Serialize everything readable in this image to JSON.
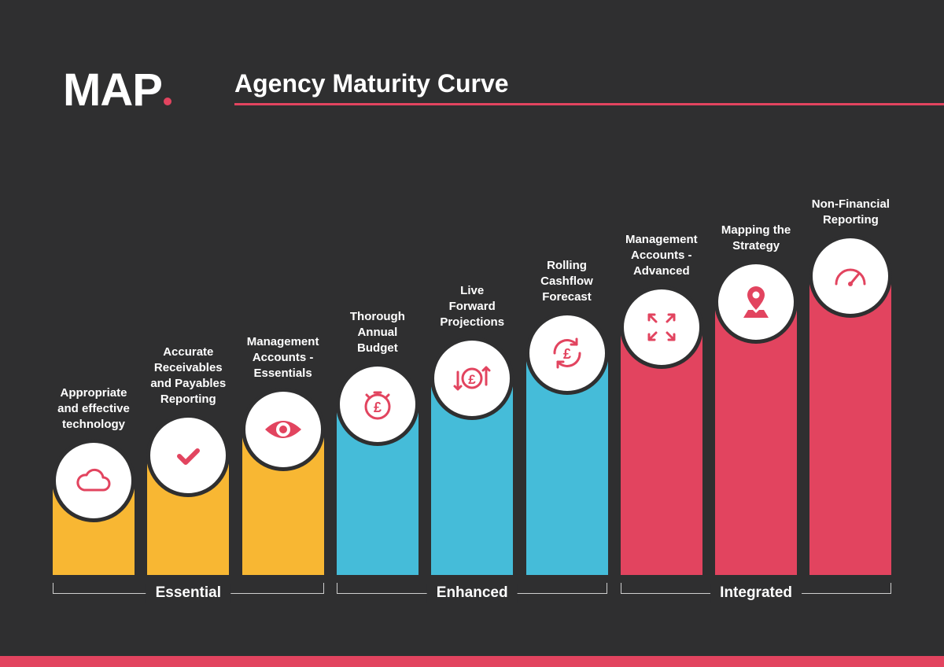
{
  "logo": {
    "text": "MAP"
  },
  "title": "Agency Maturity Curve",
  "colors": {
    "background": "#2f2f30",
    "accent": "#e2445f",
    "essential": "#f8b733",
    "enhanced": "#45bcd9",
    "integrated": "#e2445f"
  },
  "steps": [
    {
      "label": "Appropriate\nand effective\ntechnology",
      "icon": "cloud-icon",
      "group": "essential",
      "level": 1
    },
    {
      "label": "Accurate\nReceivables\nand Payables\nReporting",
      "icon": "check-icon",
      "group": "essential",
      "level": 2
    },
    {
      "label": "Management\nAccounts -\nEssentials",
      "icon": "eye-icon",
      "group": "essential",
      "level": 3
    },
    {
      "label": "Thorough\nAnnual\nBudget",
      "icon": "stopwatch-pound-icon",
      "group": "enhanced",
      "level": 4
    },
    {
      "label": "Live\nForward\nProjections",
      "icon": "pound-arrows-icon",
      "group": "enhanced",
      "level": 5
    },
    {
      "label": "Rolling\nCashflow\nForecast",
      "icon": "pound-cycle-icon",
      "group": "enhanced",
      "level": 6
    },
    {
      "label": "Management\nAccounts -\nAdvanced",
      "icon": "expand-arrows-icon",
      "group": "integrated",
      "level": 7
    },
    {
      "label": "Mapping the\nStrategy",
      "icon": "map-pin-icon",
      "group": "integrated",
      "level": 8
    },
    {
      "label": "Non-Financial\nReporting",
      "icon": "gauge-icon",
      "group": "integrated",
      "level": 9
    }
  ],
  "groups": [
    {
      "key": "essential",
      "label": "Essential"
    },
    {
      "key": "enhanced",
      "label": "Enhanced"
    },
    {
      "key": "integrated",
      "label": "Integrated"
    }
  ]
}
